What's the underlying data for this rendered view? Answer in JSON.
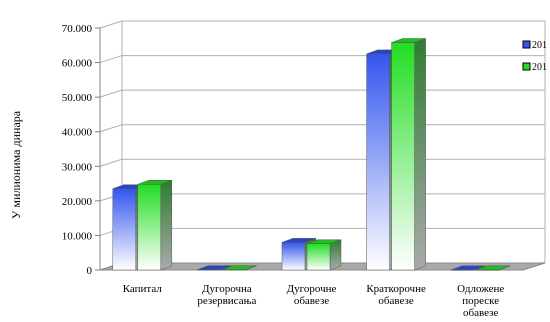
{
  "chart_data": {
    "type": "bar",
    "ylabel": "У милионима динара",
    "ylim": [
      0,
      70000
    ],
    "yticks": [
      "0",
      "10.000",
      "20.000",
      "30.000",
      "40.000",
      "50.000",
      "60.000",
      "70.000"
    ],
    "grid": true,
    "legend": "right",
    "categories": [
      [
        "Капитал"
      ],
      [
        "Дугорочна",
        "резервисања"
      ],
      [
        "Дугорочне",
        "обавезе"
      ],
      [
        "Краткорочне",
        "обавезе"
      ],
      [
        "Одложене",
        "пореске",
        "обавезе"
      ]
    ],
    "series": [
      {
        "name": "201",
        "color": "#3355ee",
        "values": [
          23500,
          100,
          8000,
          62500,
          50
        ]
      },
      {
        "name": "201",
        "color": "#22dd22",
        "values": [
          24800,
          100,
          7600,
          65800,
          50
        ]
      }
    ]
  }
}
